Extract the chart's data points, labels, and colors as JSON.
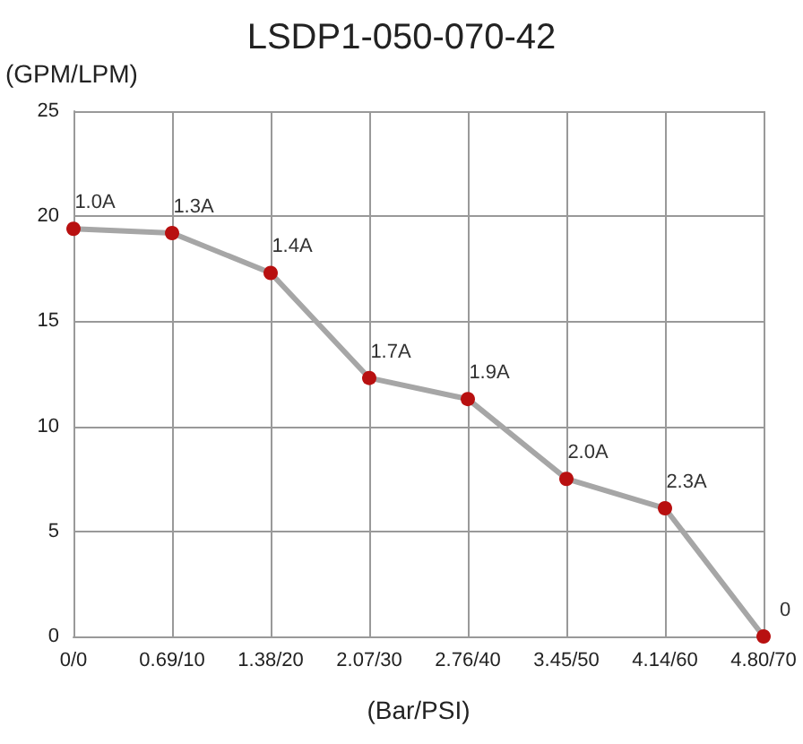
{
  "chart_data": {
    "type": "line",
    "title": "LSDP1-050-070-42",
    "xlabel": "(Bar/PSI)",
    "ylabel": "(GPM/LPM)",
    "categories": [
      "0/0",
      "0.69/10",
      "1.38/20",
      "2.07/30",
      "2.76/40",
      "3.45/50",
      "4.14/60",
      "4.80/70"
    ],
    "series": [
      {
        "color": "#a6a6a6",
        "values": [
          19.4,
          19.2,
          17.3,
          12.3,
          11.3,
          7.5,
          6.1,
          0
        ]
      }
    ],
    "annotations": [
      {
        "text": "1.0A",
        "x": "0/0",
        "y": 19.4
      },
      {
        "text": "1.3A",
        "x": "0.69/10",
        "y": 19.2
      },
      {
        "text": "1.4A",
        "x": "1.38/20",
        "y": 17.3
      },
      {
        "text": "1.7A",
        "x": "2.07/30",
        "y": 12.3
      },
      {
        "text": "1.9A",
        "x": "2.76/40",
        "y": 11.3
      },
      {
        "text": "2.0A",
        "x": "3.45/50",
        "y": 7.5
      },
      {
        "text": "2.3A",
        "x": "4.14/60",
        "y": 6.1
      },
      {
        "text": "0",
        "x": "4.80/70",
        "y": 0
      }
    ],
    "ylim": [
      0,
      25
    ],
    "yticks": [
      0,
      5,
      10,
      15,
      20,
      25
    ],
    "grid": true,
    "marker": "circle",
    "line_style": "solid"
  }
}
